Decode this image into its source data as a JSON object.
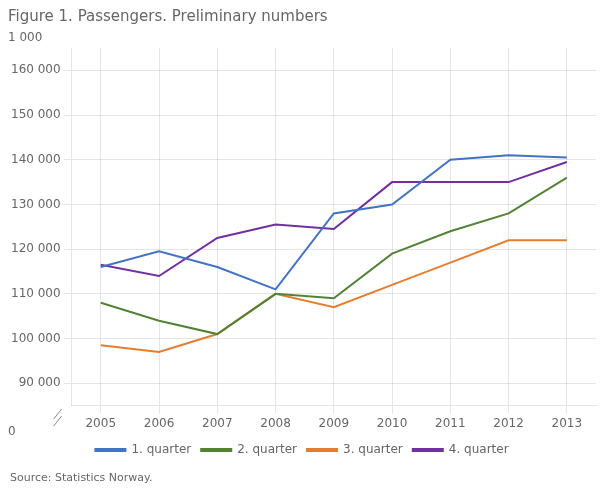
{
  "chart_data": {
    "type": "line",
    "title": "Figure 1. Passengers. Preliminary numbers",
    "source": "Source: Statistics Norway.",
    "annotations": [
      "1 000",
      "0"
    ],
    "x": [
      2005,
      2006,
      2007,
      2008,
      2009,
      2010,
      2011,
      2012,
      2013
    ],
    "xlim": [
      2004.5,
      2013.5
    ],
    "xticks": [
      2005,
      2006,
      2007,
      2008,
      2009,
      2010,
      2011,
      2012,
      2013
    ],
    "ylim": [
      85000,
      165000
    ],
    "yticks": [
      {
        "value": 90000,
        "label": "90 000"
      },
      {
        "value": 100000,
        "label": "100 000"
      },
      {
        "value": 110000,
        "label": "110 000"
      },
      {
        "value": 120000,
        "label": "120 000"
      },
      {
        "value": 130000,
        "label": "130 000"
      },
      {
        "value": 140000,
        "label": "140 000"
      },
      {
        "value": 150000,
        "label": "150 000"
      },
      {
        "value": 160000,
        "label": "160 000"
      }
    ],
    "grid": true,
    "legend": "bottom",
    "series": [
      {
        "name": "1. quarter",
        "color": "#4472C4",
        "values": [
          116000,
          119500,
          116000,
          111000,
          128000,
          130000,
          140000,
          141000,
          140500
        ]
      },
      {
        "name": "2. quarter",
        "color": "#548235",
        "values": [
          108000,
          104000,
          101000,
          110000,
          109000,
          119000,
          124000,
          128000,
          136000
        ]
      },
      {
        "name": "3. quarter",
        "color": "#E47D30",
        "values": [
          98500,
          97000,
          101000,
          110000,
          107000,
          112000,
          117000,
          122000,
          122000
        ]
      },
      {
        "name": "4. quarter",
        "color": "#7030A0",
        "values": [
          116500,
          114000,
          122500,
          125500,
          124500,
          135000,
          135000,
          135000,
          139500
        ]
      }
    ]
  }
}
